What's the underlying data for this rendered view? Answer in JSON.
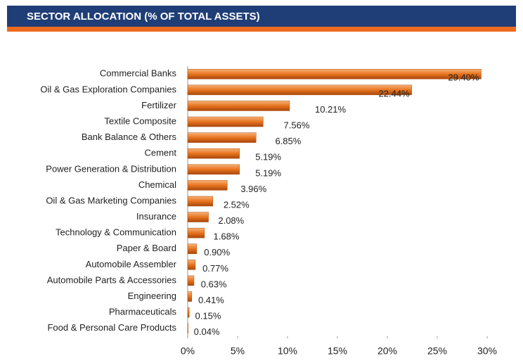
{
  "chart_data": {
    "type": "bar",
    "orientation": "horizontal",
    "title": "SECTOR ALLOCATION (% OF TOTAL ASSETS)",
    "categories": [
      "Commercial Banks",
      "Oil & Gas Exploration Companies",
      "Fertilizer",
      "Textile Composite",
      "Bank Balance & Others",
      "Cement",
      "Power Generation & Distribution",
      "Chemical",
      "Oil & Gas Marketing Companies",
      "Insurance",
      "Technology & Communication",
      "Paper & Board",
      "Automobile Assembler",
      "Automobile Parts & Accessories",
      "Engineering",
      "Pharmaceuticals",
      "Food & Personal Care Products"
    ],
    "values": [
      29.4,
      22.44,
      10.21,
      7.56,
      6.85,
      5.19,
      5.19,
      3.96,
      2.52,
      2.08,
      1.68,
      0.9,
      0.77,
      0.63,
      0.41,
      0.15,
      0.04
    ],
    "value_labels": [
      "29.40%",
      "22.44%",
      "10.21%",
      "7.56%",
      "6.85%",
      "5.19%",
      "5.19%",
      "3.96%",
      "2.52%",
      "2.08%",
      "1.68%",
      "0.90%",
      "0.77%",
      "0.63%",
      "0.41%",
      "0.15%",
      "0.04%"
    ],
    "color": "#e8741e",
    "xlim": [
      0,
      30
    ],
    "xticks": [
      {
        "value": 0,
        "label": "0%"
      },
      {
        "value": 5,
        "label": "5%"
      },
      {
        "value": 10,
        "label": "10%"
      },
      {
        "value": 15,
        "label": "15%"
      },
      {
        "value": 20,
        "label": "20%"
      },
      {
        "value": 25,
        "label": "25%"
      },
      {
        "value": 30,
        "label": "30%"
      }
    ],
    "grid": false
  }
}
